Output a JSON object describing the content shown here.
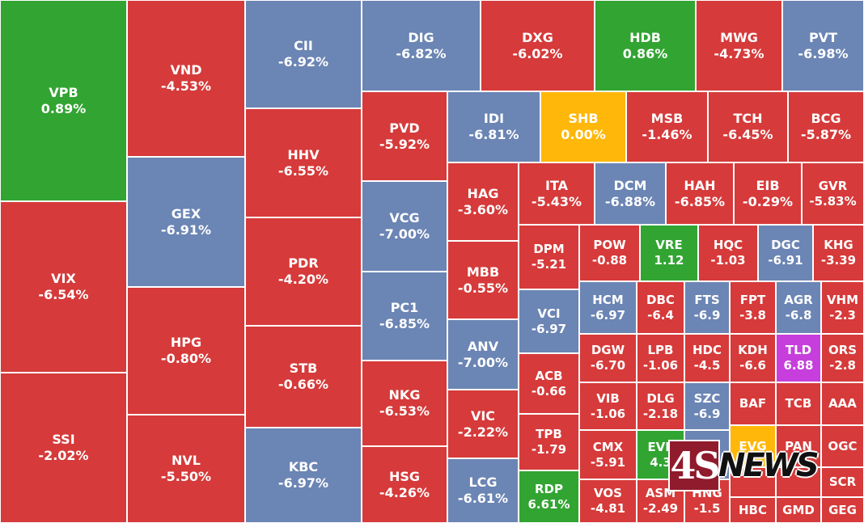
{
  "colors": {
    "down": "#d63a3a",
    "up": "#32a432",
    "ref": "#ffb70a",
    "floor": "#6b85b4",
    "ceiling": "#c63edc"
  },
  "chart_data": {
    "type": "treemap",
    "title": "",
    "tiles": [
      {
        "ticker": "VPB",
        "change": "0.89%",
        "color": "up"
      },
      {
        "ticker": "VIX",
        "change": "-6.54%",
        "color": "down"
      },
      {
        "ticker": "SSI",
        "change": "-2.02%",
        "color": "down"
      },
      {
        "ticker": "VND",
        "change": "-4.53%",
        "color": "down"
      },
      {
        "ticker": "GEX",
        "change": "-6.91%",
        "color": "floor"
      },
      {
        "ticker": "HPG",
        "change": "-0.80%",
        "color": "down"
      },
      {
        "ticker": "NVL",
        "change": "-5.50%",
        "color": "down"
      },
      {
        "ticker": "CII",
        "change": "-6.92%",
        "color": "floor"
      },
      {
        "ticker": "HHV",
        "change": "-6.55%",
        "color": "down"
      },
      {
        "ticker": "PDR",
        "change": "-4.20%",
        "color": "down"
      },
      {
        "ticker": "STB",
        "change": "-0.66%",
        "color": "down"
      },
      {
        "ticker": "KBC",
        "change": "-6.97%",
        "color": "floor"
      },
      {
        "ticker": "DIG",
        "change": "-6.82%",
        "color": "floor"
      },
      {
        "ticker": "DXG",
        "change": "-6.02%",
        "color": "down"
      },
      {
        "ticker": "HDB",
        "change": "0.86%",
        "color": "up"
      },
      {
        "ticker": "MWG",
        "change": "-4.73%",
        "color": "down"
      },
      {
        "ticker": "PVT",
        "change": "-6.98%",
        "color": "floor"
      },
      {
        "ticker": "PVD",
        "change": "-5.92%",
        "color": "down"
      },
      {
        "ticker": "VCG",
        "change": "-7.00%",
        "color": "floor"
      },
      {
        "ticker": "PC1",
        "change": "-6.85%",
        "color": "floor"
      },
      {
        "ticker": "NKG",
        "change": "-6.53%",
        "color": "down"
      },
      {
        "ticker": "HSG",
        "change": "-4.26%",
        "color": "down"
      },
      {
        "ticker": "IDI",
        "change": "-6.81%",
        "color": "floor"
      },
      {
        "ticker": "SHB",
        "change": "0.00%",
        "color": "ref"
      },
      {
        "ticker": "MSB",
        "change": "-1.46%",
        "color": "down"
      },
      {
        "ticker": "TCH",
        "change": "-6.45%",
        "color": "down"
      },
      {
        "ticker": "BCG",
        "change": "-5.87%",
        "color": "down"
      },
      {
        "ticker": "HAG",
        "change": "-3.60%",
        "color": "down"
      },
      {
        "ticker": "ITA",
        "change": "-5.43%",
        "color": "down"
      },
      {
        "ticker": "DCM",
        "change": "-6.88%",
        "color": "floor"
      },
      {
        "ticker": "HAH",
        "change": "-6.85%",
        "color": "down"
      },
      {
        "ticker": "EIB",
        "change": "-0.29%",
        "color": "down"
      },
      {
        "ticker": "GVR",
        "change": "-5.83%",
        "color": "down"
      },
      {
        "ticker": "MBB",
        "change": "-0.55%",
        "color": "down"
      },
      {
        "ticker": "DPM",
        "change": "-5.21",
        "color": "down"
      },
      {
        "ticker": "POW",
        "change": "-0.88",
        "color": "down"
      },
      {
        "ticker": "VRE",
        "change": "1.12",
        "color": "up"
      },
      {
        "ticker": "HQC",
        "change": "-1.03",
        "color": "down"
      },
      {
        "ticker": "DGC",
        "change": "-6.91",
        "color": "floor"
      },
      {
        "ticker": "KHG",
        "change": "-3.39",
        "color": "down"
      },
      {
        "ticker": "VCI",
        "change": "-6.97",
        "color": "floor"
      },
      {
        "ticker": "HCM",
        "change": "-6.97",
        "color": "floor"
      },
      {
        "ticker": "DBC",
        "change": "-6.4",
        "color": "down"
      },
      {
        "ticker": "FTS",
        "change": "-6.9",
        "color": "floor"
      },
      {
        "ticker": "FPT",
        "change": "-3.8",
        "color": "down"
      },
      {
        "ticker": "AGR",
        "change": "-6.8",
        "color": "floor"
      },
      {
        "ticker": "VHM",
        "change": "-2.3",
        "color": "down"
      },
      {
        "ticker": "ANV",
        "change": "-7.00%",
        "color": "floor"
      },
      {
        "ticker": "ACB",
        "change": "-0.66",
        "color": "down"
      },
      {
        "ticker": "DGW",
        "change": "-6.70",
        "color": "down"
      },
      {
        "ticker": "LPB",
        "change": "-1.06",
        "color": "down"
      },
      {
        "ticker": "HDC",
        "change": "-4.5",
        "color": "down"
      },
      {
        "ticker": "KDH",
        "change": "-6.6",
        "color": "down"
      },
      {
        "ticker": "TLD",
        "change": "6.88",
        "color": "ceiling"
      },
      {
        "ticker": "ORS",
        "change": "-2.8",
        "color": "down"
      },
      {
        "ticker": "VIC",
        "change": "-2.22%",
        "color": "down"
      },
      {
        "ticker": "VIB",
        "change": "-1.06",
        "color": "down"
      },
      {
        "ticker": "DLG",
        "change": "-2.18",
        "color": "down"
      },
      {
        "ticker": "SZC",
        "change": "-6.9",
        "color": "floor"
      },
      {
        "ticker": "BAF",
        "change": "",
        "color": "down"
      },
      {
        "ticker": "TCB",
        "change": "",
        "color": "down"
      },
      {
        "ticker": "AAA",
        "change": "",
        "color": "down"
      },
      {
        "ticker": "TPB",
        "change": "-1.79",
        "color": "down"
      },
      {
        "ticker": "CMX",
        "change": "-5.91",
        "color": "down"
      },
      {
        "ticker": "EVF",
        "change": "4.3",
        "color": "up"
      },
      {
        "ticker": "",
        "change": "",
        "color": "floor"
      },
      {
        "ticker": "EVG",
        "change": "",
        "color": "ref"
      },
      {
        "ticker": "PAN",
        "change": "",
        "color": "down"
      },
      {
        "ticker": "OGC",
        "change": "",
        "color": "down"
      },
      {
        "ticker": "LCG",
        "change": "-6.61%",
        "color": "floor"
      },
      {
        "ticker": "RDP",
        "change": "6.61%",
        "color": "up"
      },
      {
        "ticker": "VOS",
        "change": "-4.81",
        "color": "down"
      },
      {
        "ticker": "ASM",
        "change": "-2.49",
        "color": "down"
      },
      {
        "ticker": "HNG",
        "change": "-1.5",
        "color": "down"
      },
      {
        "ticker": "",
        "change": "",
        "color": "down"
      },
      {
        "ticker": "",
        "change": "",
        "color": "down"
      },
      {
        "ticker": "SCR",
        "change": "",
        "color": "down"
      },
      {
        "ticker": "HBC",
        "change": "",
        "color": "down"
      },
      {
        "ticker": "GMD",
        "change": "",
        "color": "down"
      },
      {
        "ticker": "GEG",
        "change": "",
        "color": "down"
      }
    ]
  },
  "watermark": {
    "box_text": "4S",
    "text": "NEWS"
  }
}
